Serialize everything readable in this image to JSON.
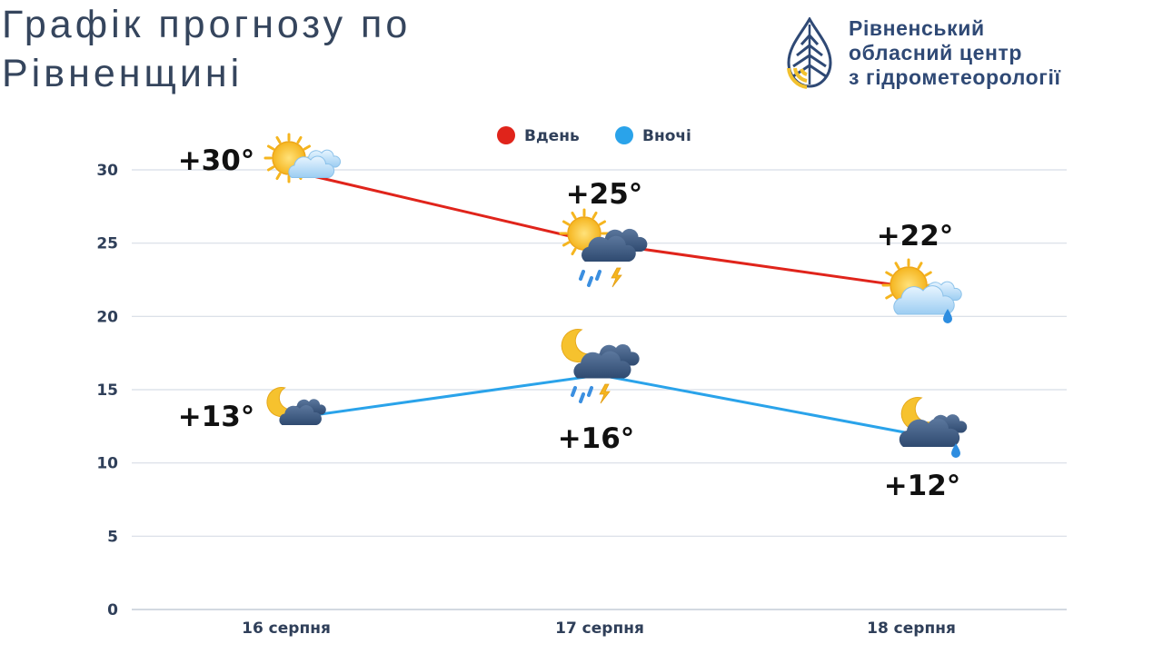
{
  "header": {
    "title_line1": "Графік прогнозу по",
    "title_line2": "Рівненщині"
  },
  "organization": {
    "line1": "Рівненський",
    "line2": "обласний центр",
    "line3": "з гідрометеорології",
    "logo_icon": "water-drop-leaf-logo-icon",
    "logo_colors": {
      "blue": "#2f4975",
      "yellow": "#f2c12e"
    }
  },
  "chart_data": {
    "type": "line",
    "title": "",
    "xlabel": "",
    "ylabel": "",
    "categories": [
      "16 серпня",
      "17 серпня",
      "18 серпня"
    ],
    "ylim": [
      0,
      32
    ],
    "yticks": [
      0,
      5,
      10,
      15,
      20,
      25,
      30
    ],
    "grid": true,
    "legend_position": "top-center",
    "series": [
      {
        "name": "Вдень",
        "color": "#e0241b",
        "values": [
          30,
          25,
          22
        ],
        "labels": [
          "+30°",
          "+25°",
          "+22°"
        ],
        "icons": [
          "sun-cloud-icon",
          "sun-cloud-rain-thunder-icon",
          "sun-cloud-rain-icon"
        ]
      },
      {
        "name": "Вночі",
        "color": "#2aa3ea",
        "values": [
          13,
          16,
          12
        ],
        "labels": [
          "+13°",
          "+16°",
          "+12°"
        ],
        "icons": [
          "moon-cloud-icon",
          "moon-cloud-rain-thunder-icon",
          "moon-cloud-rain-icon"
        ]
      }
    ]
  }
}
